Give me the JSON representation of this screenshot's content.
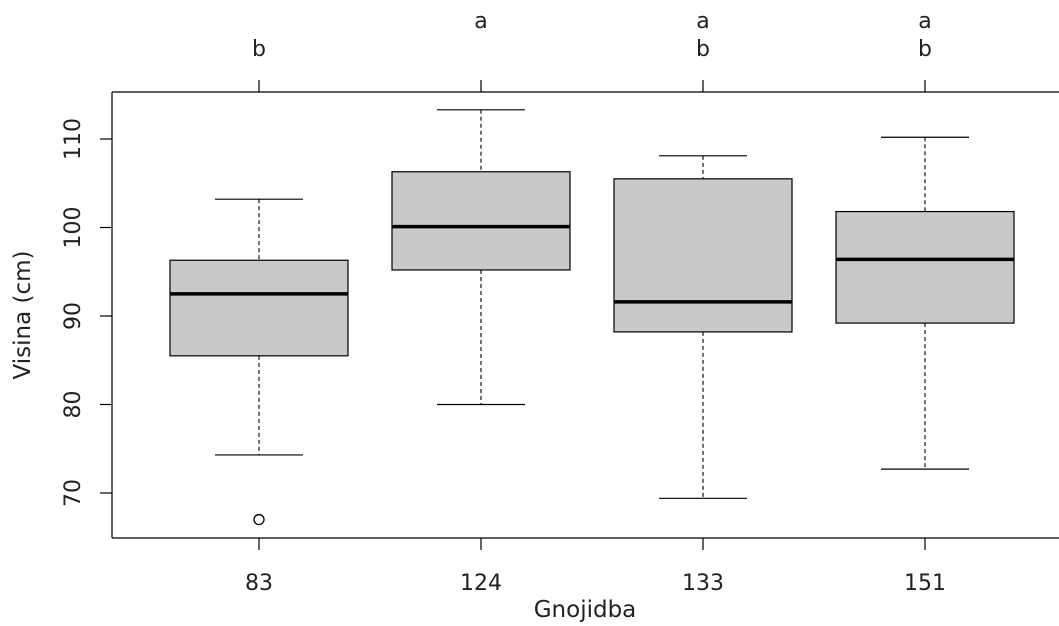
{
  "chart_data": {
    "type": "box",
    "xlabel": "Gnojidba",
    "ylabel": "Visina (cm)",
    "categories": [
      "83",
      "124",
      "133",
      "151"
    ],
    "y_ticks": [
      70,
      80,
      90,
      100,
      110
    ],
    "ylim": [
      65,
      116
    ],
    "boxes": [
      {
        "category": "83",
        "whisker_low": 74.3,
        "q1": 85.5,
        "median": 92.5,
        "q3": 96.3,
        "whisker_high": 103.2,
        "outliers": [
          67.0
        ],
        "letters": [
          "b"
        ]
      },
      {
        "category": "124",
        "whisker_low": 80.0,
        "q1": 95.2,
        "median": 100.1,
        "q3": 106.3,
        "whisker_high": 113.3,
        "outliers": [],
        "letters": [
          "a"
        ]
      },
      {
        "category": "133",
        "whisker_low": 69.4,
        "q1": 88.2,
        "median": 91.6,
        "q3": 105.5,
        "whisker_high": 108.1,
        "outliers": [],
        "letters": [
          "a",
          "b"
        ]
      },
      {
        "category": "151",
        "whisker_low": 72.7,
        "q1": 89.2,
        "median": 96.4,
        "q3": 101.8,
        "whisker_high": 110.2,
        "outliers": [],
        "letters": [
          "a",
          "b"
        ]
      }
    ],
    "colors": {
      "box_fill": "#c8c9cb",
      "line": "#000000"
    }
  }
}
